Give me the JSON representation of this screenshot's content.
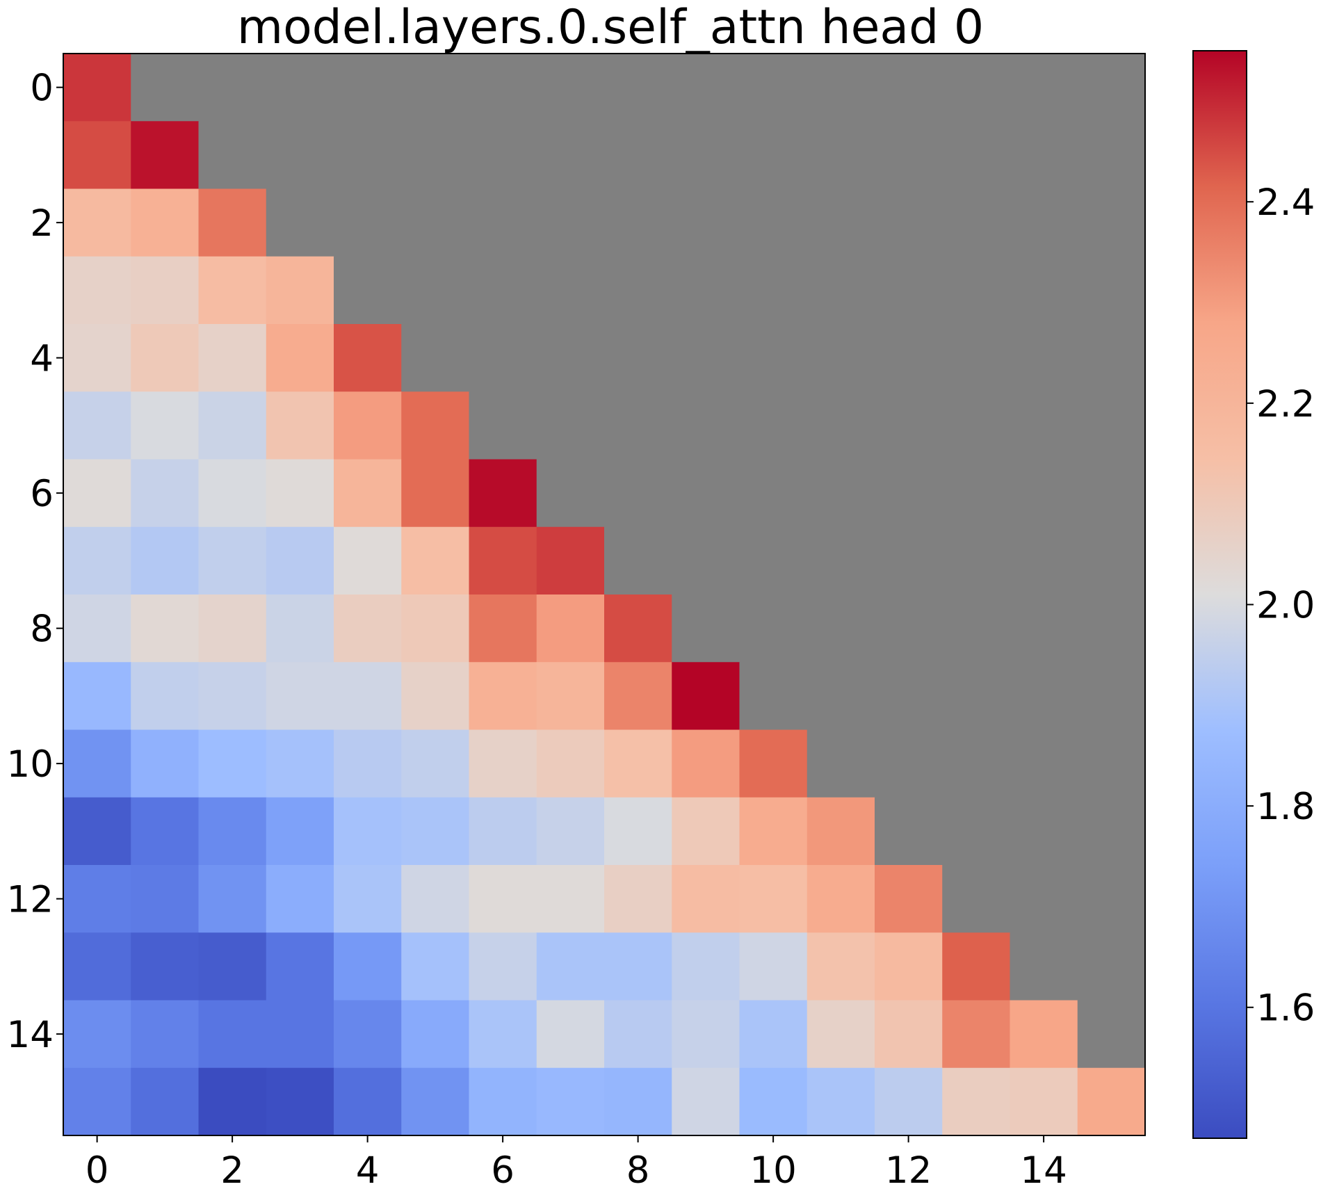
{
  "chart_data": {
    "type": "heatmap",
    "title": "model.layers.0.self_attn head 0",
    "xlabel": "",
    "ylabel": "",
    "rows": 16,
    "cols": 16,
    "x_ticks": [
      0,
      2,
      4,
      6,
      8,
      10,
      12,
      14
    ],
    "y_ticks": [
      0,
      2,
      4,
      6,
      8,
      10,
      12,
      14
    ],
    "x_tick_labels": [
      "0",
      "2",
      "4",
      "6",
      "8",
      "10",
      "12",
      "14"
    ],
    "y_tick_labels": [
      "0",
      "2",
      "4",
      "6",
      "8",
      "10",
      "12",
      "14"
    ],
    "masked_region": "upper triangle (column > row)",
    "mask_color": "#808080",
    "colormap": "coolwarm",
    "colorbar": {
      "min": 1.47,
      "max": 2.55,
      "ticks": [
        1.6,
        1.8,
        2.0,
        2.2,
        2.4
      ],
      "tick_labels": [
        "1.6",
        "1.8",
        "2.0",
        "2.2",
        "2.4"
      ],
      "placement": "right"
    },
    "values": [
      [
        2.48,
        null,
        null,
        null,
        null,
        null,
        null,
        null,
        null,
        null,
        null,
        null,
        null,
        null,
        null,
        null
      ],
      [
        2.45,
        2.53,
        null,
        null,
        null,
        null,
        null,
        null,
        null,
        null,
        null,
        null,
        null,
        null,
        null,
        null
      ],
      [
        2.17,
        2.22,
        2.38,
        null,
        null,
        null,
        null,
        null,
        null,
        null,
        null,
        null,
        null,
        null,
        null,
        null
      ],
      [
        2.06,
        2.07,
        2.16,
        2.2,
        null,
        null,
        null,
        null,
        null,
        null,
        null,
        null,
        null,
        null,
        null,
        null
      ],
      [
        2.05,
        2.1,
        2.06,
        2.25,
        2.44,
        null,
        null,
        null,
        null,
        null,
        null,
        null,
        null,
        null,
        null,
        null
      ],
      [
        1.96,
        2.0,
        1.97,
        2.12,
        2.3,
        2.4,
        null,
        null,
        null,
        null,
        null,
        null,
        null,
        null,
        null,
        null
      ],
      [
        2.02,
        1.96,
        2.0,
        2.02,
        2.2,
        2.4,
        2.54,
        null,
        null,
        null,
        null,
        null,
        null,
        null,
        null,
        null
      ],
      [
        1.95,
        1.92,
        1.95,
        1.93,
        2.02,
        2.15,
        2.45,
        2.47,
        null,
        null,
        null,
        null,
        null,
        null,
        null,
        null
      ],
      [
        1.98,
        2.03,
        2.05,
        1.97,
        2.08,
        2.1,
        2.38,
        2.3,
        2.45,
        null,
        null,
        null,
        null,
        null,
        null,
        null
      ],
      [
        1.85,
        1.95,
        1.96,
        1.98,
        1.98,
        2.06,
        2.22,
        2.2,
        2.35,
        2.55,
        null,
        null,
        null,
        null,
        null,
        null
      ],
      [
        1.7,
        1.82,
        1.87,
        1.89,
        1.93,
        1.95,
        2.06,
        2.09,
        2.14,
        2.3,
        2.4,
        null,
        null,
        null,
        null,
        null
      ],
      [
        1.52,
        1.6,
        1.67,
        1.75,
        1.89,
        1.9,
        1.94,
        1.96,
        2.0,
        2.1,
        2.25,
        2.31,
        null,
        null,
        null,
        null
      ],
      [
        1.63,
        1.62,
        1.7,
        1.8,
        1.9,
        1.98,
        2.02,
        2.02,
        2.07,
        2.16,
        2.15,
        2.25,
        2.35,
        null,
        null,
        null
      ],
      [
        1.57,
        1.53,
        1.52,
        1.6,
        1.72,
        1.89,
        1.96,
        1.9,
        1.9,
        1.95,
        1.98,
        2.13,
        2.17,
        2.42,
        null,
        null
      ],
      [
        1.68,
        1.64,
        1.6,
        1.6,
        1.66,
        1.79,
        1.9,
        1.99,
        1.93,
        1.96,
        1.9,
        2.06,
        2.12,
        2.35,
        2.28,
        null
      ],
      [
        1.64,
        1.58,
        1.47,
        1.48,
        1.58,
        1.7,
        1.83,
        1.85,
        1.84,
        1.98,
        1.86,
        1.9,
        1.94,
        2.08,
        2.09,
        2.26
      ]
    ]
  }
}
